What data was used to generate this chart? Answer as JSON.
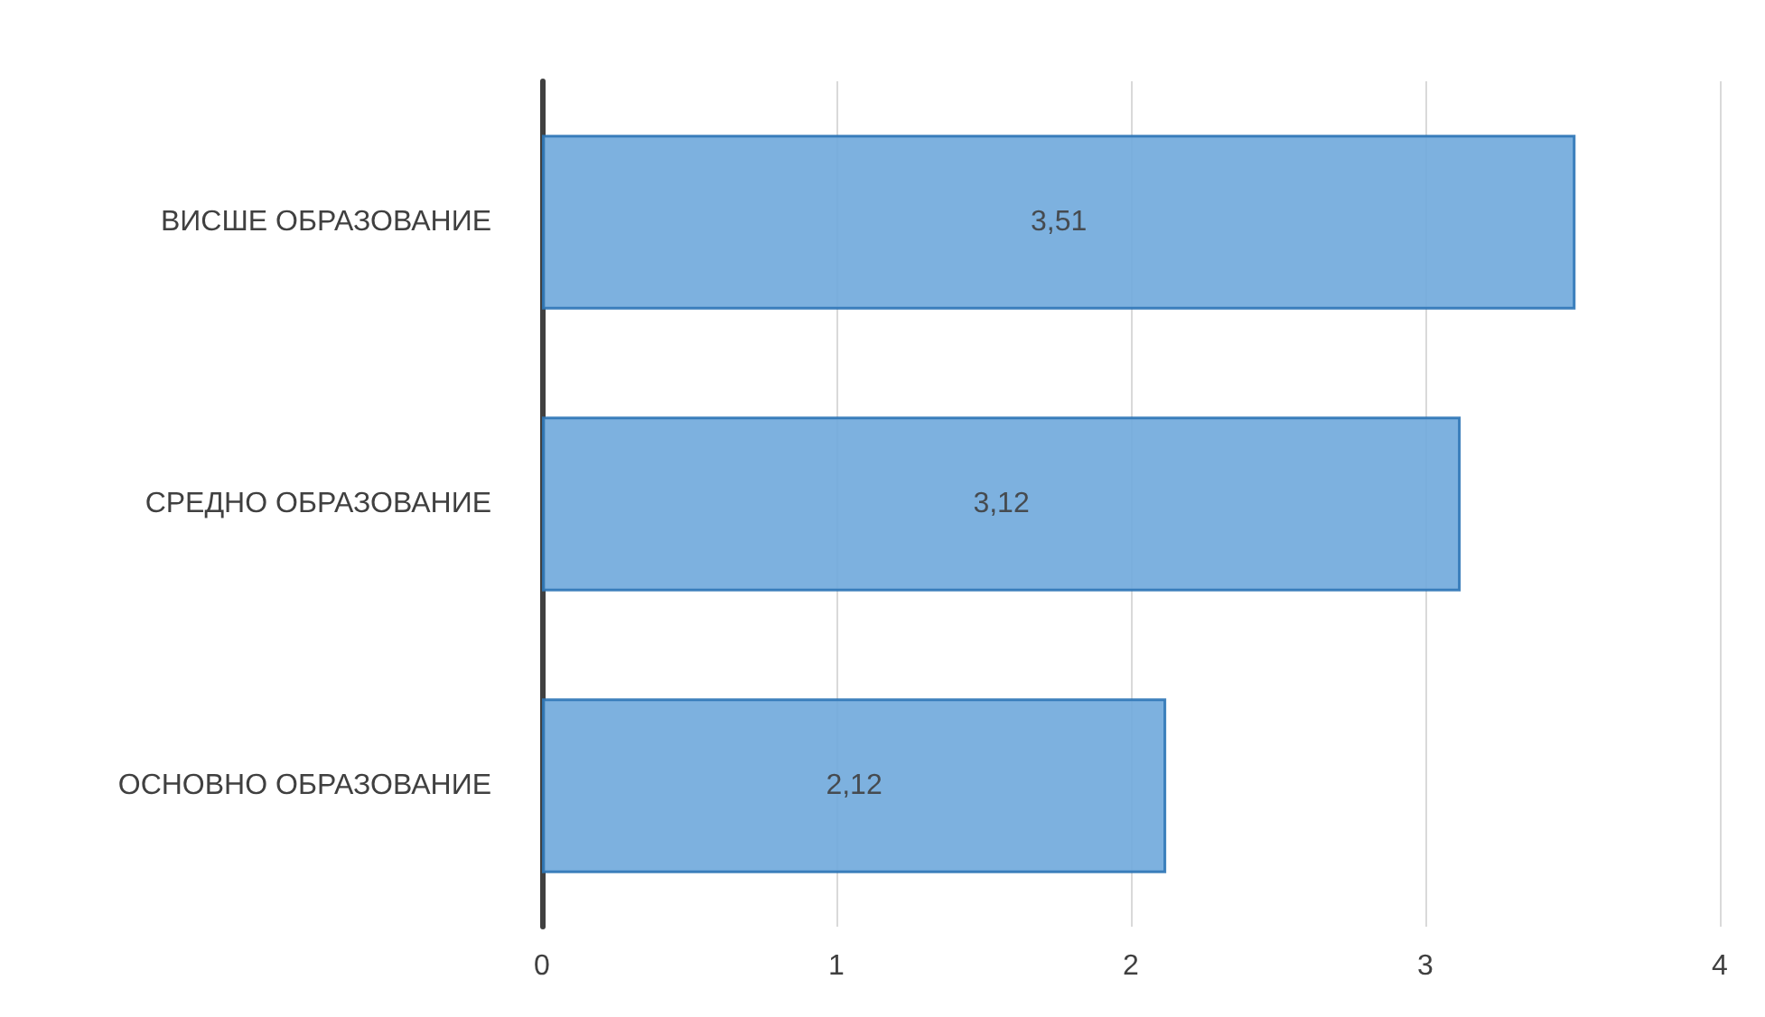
{
  "chart_data": {
    "type": "bar",
    "orientation": "horizontal",
    "categories": [
      "ВИСШЕ ОБРАЗОВАНИЕ",
      "СРЕДНО ОБРАЗОВАНИЕ",
      "ОСНОВНО ОБРАЗОВАНИЕ"
    ],
    "values": [
      3.51,
      3.12,
      2.12
    ],
    "value_labels": [
      "3,51",
      "3,12",
      "2,12"
    ],
    "color": "#6fa8dc",
    "xlim": [
      0,
      4
    ],
    "xticks": [
      0,
      1,
      2,
      3,
      4
    ],
    "grid": "x"
  }
}
